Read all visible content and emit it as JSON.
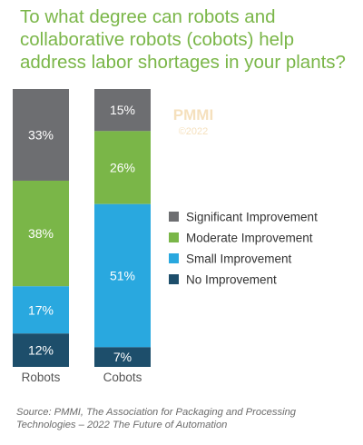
{
  "title": "To what degree can robots and collaborative robots (cobots) help address labor shortages in your plants?",
  "watermark": [
    "PMMI",
    "©2022"
  ],
  "source": "Source:  PMMI, The Association for Packaging and Processing Technologies – 2022 The Future of Automation",
  "chart_data": {
    "type": "bar",
    "stacked": true,
    "orientation": "vertical",
    "categories": [
      "Robots",
      "Cobots"
    ],
    "series": [
      {
        "name": "Significant Improvement",
        "color": "#6d6e71",
        "values": [
          33,
          15
        ],
        "labels": [
          "33%",
          "15%"
        ]
      },
      {
        "name": "Moderate Improvement",
        "color": "#7ab648",
        "values": [
          38,
          26
        ],
        "labels": [
          "38%",
          "26%"
        ]
      },
      {
        "name": "Small Improvement",
        "color": "#29a8df",
        "values": [
          17,
          51
        ],
        "labels": [
          "17%",
          "51%"
        ]
      },
      {
        "name": "No Improvement",
        "color": "#1d4e6b",
        "values": [
          12,
          7
        ],
        "labels": [
          "12%",
          "7%"
        ]
      }
    ],
    "ylim": [
      0,
      100
    ],
    "legend_position": "right",
    "grid": false,
    "label_color": "#ffffff"
  }
}
